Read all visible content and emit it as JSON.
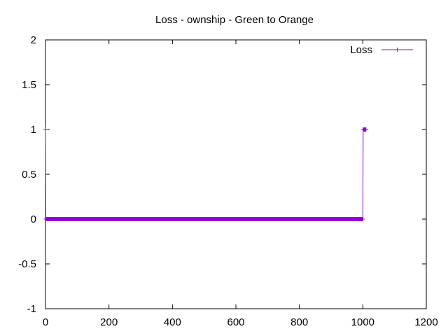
{
  "chart_data": {
    "type": "line",
    "title": "Loss - ownship - Green to Orange",
    "xlabel": "",
    "ylabel": "",
    "xlim": [
      0,
      1200
    ],
    "ylim": [
      -1,
      2
    ],
    "x_ticks": [
      0,
      200,
      400,
      600,
      800,
      1000,
      1200
    ],
    "x_tick_labels": [
      "0",
      "200",
      "400",
      "600",
      "800",
      "1000",
      "1200"
    ],
    "y_ticks": [
      -1,
      -0.5,
      0,
      0.5,
      1,
      1.5,
      2
    ],
    "y_tick_labels": [
      "-1",
      "-0.5",
      "0",
      "0.5",
      "1",
      "1.5",
      "2"
    ],
    "grid": false,
    "legend_position": "top-right",
    "series": [
      {
        "name": "Loss",
        "color": "#9400d3",
        "marker": "plus",
        "x_start": 0,
        "x_end": 1010,
        "x_step": 1,
        "segments": [
          {
            "x_from": 0,
            "x_to": 0,
            "y": 1
          },
          {
            "x_from": 1,
            "x_to": 1000,
            "y": 0
          },
          {
            "x_from": 1001,
            "x_to": 1010,
            "y": 1
          }
        ]
      }
    ]
  }
}
